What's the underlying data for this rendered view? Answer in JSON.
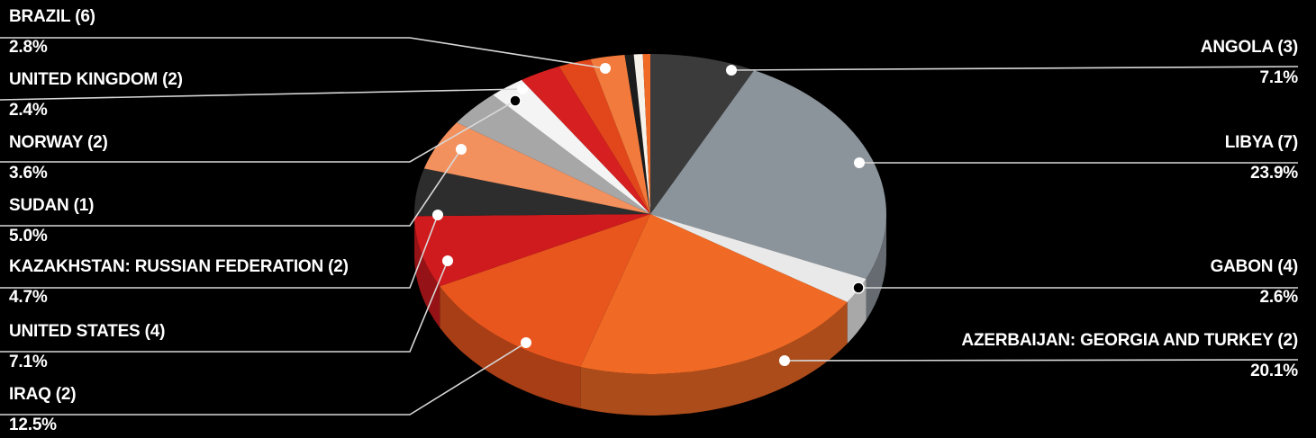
{
  "chart_data": {
    "type": "pie",
    "slices": [
      {
        "label": "ANGOLA (3)",
        "value": "7.1%",
        "pct": 7.1,
        "color": "#3b3b3b"
      },
      {
        "label": "LIBYA (7)",
        "value": "23.9%",
        "pct": 23.9,
        "color": "#8c949b"
      },
      {
        "label": "GABON (4)",
        "value": "2.6%",
        "pct": 2.6,
        "color": "#e9e9e9"
      },
      {
        "label": "AZERBAIJAN: GEORGIA AND TURKEY (2)",
        "value": "20.1%",
        "pct": 20.1,
        "color": "#f06a25"
      },
      {
        "label": "IRAQ (2)",
        "value": "12.5%",
        "pct": 12.5,
        "color": "#e8561e"
      },
      {
        "label": "UNITED STATES (4)",
        "value": "7.1%",
        "pct": 7.1,
        "color": "#cf1b1e"
      },
      {
        "label": "KAZAKHSTAN: RUSSIAN FEDERATION (2)",
        "value": "4.7%",
        "pct": 4.7,
        "color": "#2d2d2d"
      },
      {
        "label": "SUDAN (1)",
        "value": "5.0%",
        "pct": 5.0,
        "color": "#f3915e"
      },
      {
        "label": "NORWAY (2)",
        "value": "3.6%",
        "pct": 3.6,
        "color": "#a7a7a7"
      },
      {
        "label": "UNITED KINGDOM (2)",
        "value": "2.4%",
        "pct": 2.4,
        "color": "#f4f4f4"
      },
      {
        "label": "BRAZIL (6)",
        "value": "2.8%",
        "pct": 2.8,
        "color": "#d61f20"
      },
      {
        "label": "",
        "value": "",
        "pct": 2.2,
        "color": "#e2461b"
      },
      {
        "label": "",
        "value": "",
        "pct": 2.3,
        "color": "#f27a3c"
      },
      {
        "label": "",
        "value": "",
        "pct": 0.6,
        "color": "#1c1c1c"
      },
      {
        "label": "",
        "value": "",
        "pct": 0.6,
        "color": "#f6f2ea"
      },
      {
        "label": "",
        "value": "",
        "pct": 0.5,
        "color": "#f06a25"
      }
    ]
  }
}
